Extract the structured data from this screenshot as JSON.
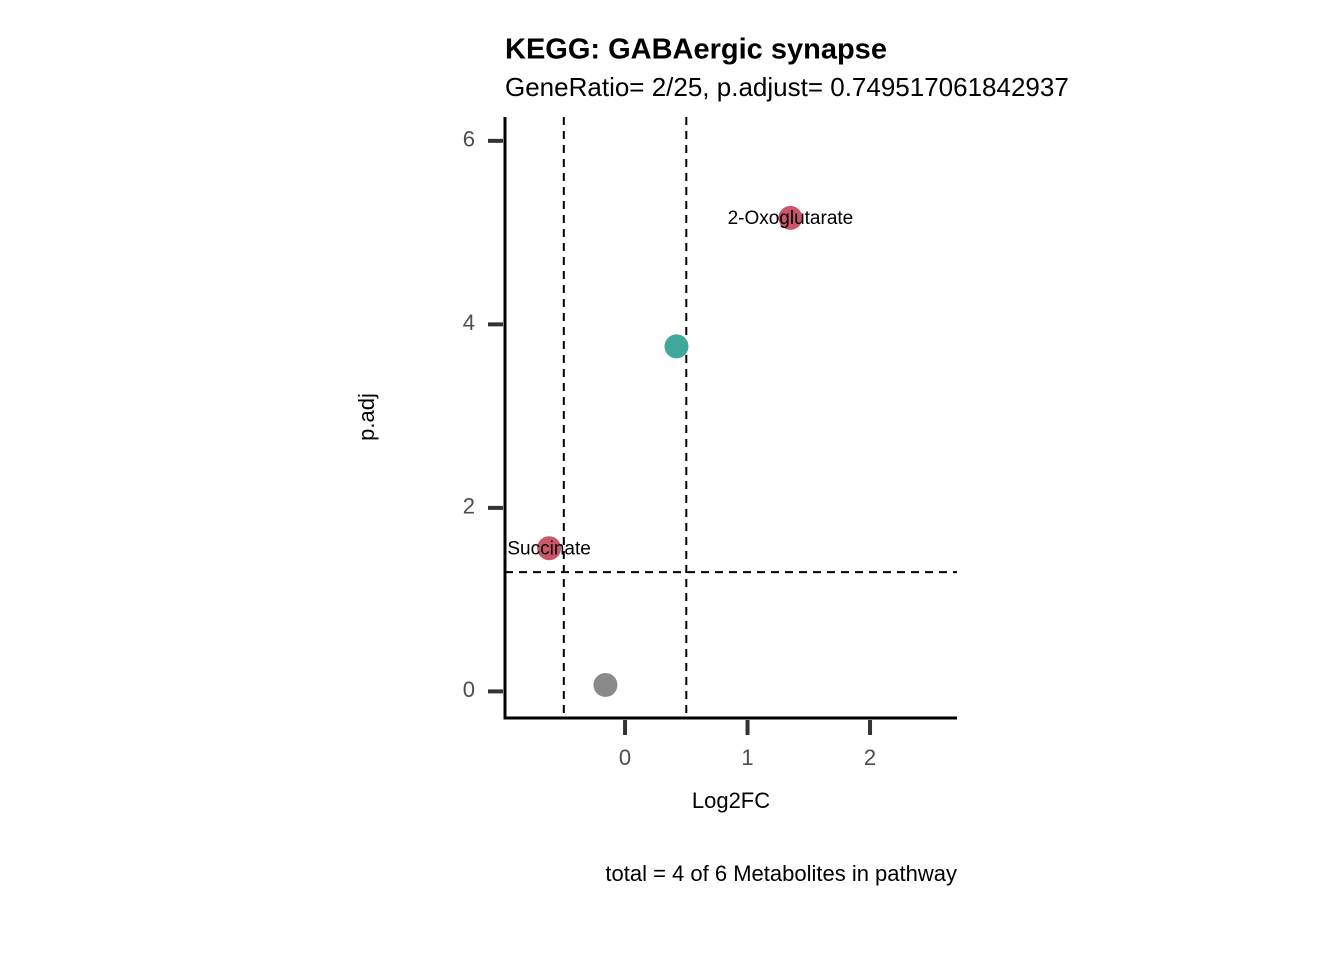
{
  "chart_data": {
    "type": "scatter",
    "title": "KEGG: GABAergic synapse",
    "subtitle": "GeneRatio= 2/25, p.adjust= 0.749517061842937",
    "x_label": "Log2FC",
    "y_label": "p.adj",
    "caption": "total = 4 of 6 Metabolites in pathway",
    "x": [
      -0.16,
      0.42,
      -0.62,
      1.35
    ],
    "values": [
      0.07,
      3.76,
      1.56,
      5.16
    ],
    "colors": [
      "#8a8a8a",
      "#3fa89a",
      "#c9566b",
      "#c9566b"
    ],
    "labels": [
      null,
      null,
      "Succinate",
      "2-Oxoglutarate"
    ],
    "vlines": [
      -0.5,
      0.5
    ],
    "hline": 1.3,
    "xlim": [
      -0.98,
      2.71
    ],
    "ylim": [
      -0.29,
      6.26
    ],
    "xticks": [
      0,
      1,
      2
    ],
    "yticks": [
      0,
      2,
      4,
      6
    ]
  }
}
